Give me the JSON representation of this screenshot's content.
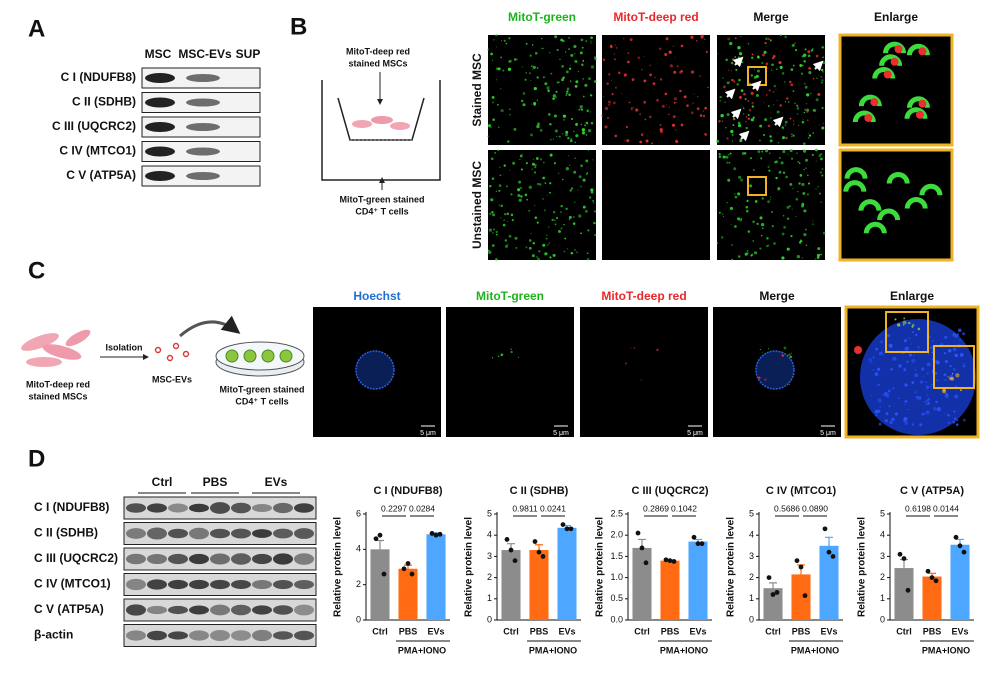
{
  "panel_a": {
    "label": "A",
    "columns": [
      "MSC",
      "MSC-EVs",
      "SUP"
    ],
    "rows": [
      "C I (NDUFB8)",
      "C II (SDHB)",
      "C III (UQCRC2)",
      "C IV (MTCO1)",
      "C V (ATP5A)"
    ]
  },
  "panel_b": {
    "label": "B",
    "schematic": {
      "top": [
        "MitoT-deep red",
        "stained MSCs"
      ],
      "bottom": [
        "MitoT-green stained",
        "CD4⁺ T cells"
      ]
    },
    "columns": [
      "MitoT-green",
      "MitoT-deep red",
      "Merge",
      "Enlarge"
    ],
    "rows": [
      "Stained MSC",
      "Unstained MSC"
    ]
  },
  "panel_c": {
    "label": "C",
    "schematic": {
      "source": [
        "MitoT-deep red",
        "stained MSCs"
      ],
      "step": "Isolation",
      "product": "MSC-EVs",
      "target": [
        "MitoT-green stained",
        "CD4⁺ T cells"
      ]
    },
    "columns": [
      "Hoechst",
      "MitoT-green",
      "MitoT-deep red",
      "Merge",
      "Enlarge"
    ],
    "scale_bar": "5 μm"
  },
  "panel_d": {
    "label": "D",
    "groups": [
      "Ctrl",
      "PBS",
      "EVs"
    ],
    "rows": [
      "C I (NDUFB8)",
      "C II (SDHB)",
      "C III (UQCRC2)",
      "C IV (MTCO1)",
      "C V (ATP5A)",
      "β-actin"
    ]
  },
  "chart_data": [
    {
      "type": "bar",
      "title": "C I (NDUFB8)",
      "y_label": "Relative protein level",
      "categories": [
        "Ctrl",
        "PBS",
        "EVs"
      ],
      "group_label": "PMA+IONO",
      "colors": [
        "#8c8c8c",
        "#ff6a13",
        "#4da6ff"
      ],
      "values": [
        4.0,
        2.9,
        4.85
      ],
      "errors": [
        0.5,
        0.2,
        0.08
      ],
      "points": [
        [
          4.6,
          4.8,
          2.6
        ],
        [
          2.9,
          3.2,
          2.6
        ],
        [
          4.9,
          4.8,
          4.85
        ]
      ],
      "p_values": [
        "0.2297",
        "0.0284"
      ],
      "ylim": [
        0,
        6
      ],
      "yticks": [
        0,
        2,
        4,
        6
      ]
    },
    {
      "type": "bar",
      "title": "C II (SDHB)",
      "y_label": "Relative protein level",
      "categories": [
        "Ctrl",
        "PBS",
        "EVs"
      ],
      "group_label": "PMA+IONO",
      "colors": [
        "#8c8c8c",
        "#ff6a13",
        "#4da6ff"
      ],
      "values": [
        3.3,
        3.3,
        4.35
      ],
      "errors": [
        0.3,
        0.25,
        0.1
      ],
      "points": [
        [
          3.8,
          3.3,
          2.8
        ],
        [
          3.7,
          3.2,
          3.0
        ],
        [
          4.5,
          4.3,
          4.3
        ]
      ],
      "p_values": [
        "0.9811",
        "0.0241"
      ],
      "ylim": [
        0,
        5
      ],
      "yticks": [
        0,
        1,
        2,
        3,
        4,
        5
      ]
    },
    {
      "type": "bar",
      "title": "C III (UQCRC2)",
      "y_label": "Relative protein level",
      "categories": [
        "Ctrl",
        "PBS",
        "EVs"
      ],
      "group_label": "PMA+IONO",
      "colors": [
        "#8c8c8c",
        "#ff6a13",
        "#4da6ff"
      ],
      "values": [
        1.7,
        1.4,
        1.85
      ],
      "errors": [
        0.2,
        0.02,
        0.05
      ],
      "points": [
        [
          2.05,
          1.7,
          1.35
        ],
        [
          1.42,
          1.4,
          1.38
        ],
        [
          1.95,
          1.8,
          1.8
        ]
      ],
      "p_values": [
        "0.2869",
        "0.1042"
      ],
      "ylim": [
        0,
        2.5
      ],
      "yticks": [
        {
          "value": 0,
          "label": "0.0"
        },
        {
          "value": 0.5,
          "label": "0.5"
        },
        {
          "value": 1,
          "label": "1.0"
        },
        {
          "value": 1.5,
          "label": "1.5"
        },
        {
          "value": 2,
          "label": "2.0"
        },
        {
          "value": 2.5,
          "label": "2.5"
        }
      ]
    },
    {
      "type": "bar",
      "title": "C IV (MTCO1)",
      "y_label": "Relative protein level",
      "categories": [
        "Ctrl",
        "PBS",
        "EVs"
      ],
      "group_label": "PMA+IONO",
      "colors": [
        "#8c8c8c",
        "#ff6a13",
        "#4da6ff"
      ],
      "values": [
        1.5,
        2.15,
        3.5
      ],
      "errors": [
        0.25,
        0.45,
        0.4
      ],
      "points": [
        [
          2.0,
          1.2,
          1.3
        ],
        [
          2.8,
          2.5,
          1.15
        ],
        [
          4.3,
          3.2,
          3.0
        ]
      ],
      "p_values": [
        "0.5686",
        "0.0890"
      ],
      "ylim": [
        0,
        5
      ],
      "yticks": [
        0,
        1,
        2,
        3,
        4,
        5
      ]
    },
    {
      "type": "bar",
      "title": "C V (ATP5A)",
      "y_label": "Relative protein level",
      "categories": [
        "Ctrl",
        "PBS",
        "EVs"
      ],
      "group_label": "PMA+IONO",
      "colors": [
        "#8c8c8c",
        "#ff6a13",
        "#4da6ff"
      ],
      "values": [
        2.45,
        2.05,
        3.55
      ],
      "errors": [
        0.4,
        0.15,
        0.25
      ],
      "points": [
        [
          3.1,
          2.9,
          1.4
        ],
        [
          2.3,
          2.0,
          1.85
        ],
        [
          3.9,
          3.5,
          3.2
        ]
      ],
      "p_values": [
        "0.6198",
        "0.0144"
      ],
      "ylim": [
        0,
        5
      ],
      "yticks": [
        0,
        1,
        2,
        3,
        4,
        5
      ]
    }
  ]
}
